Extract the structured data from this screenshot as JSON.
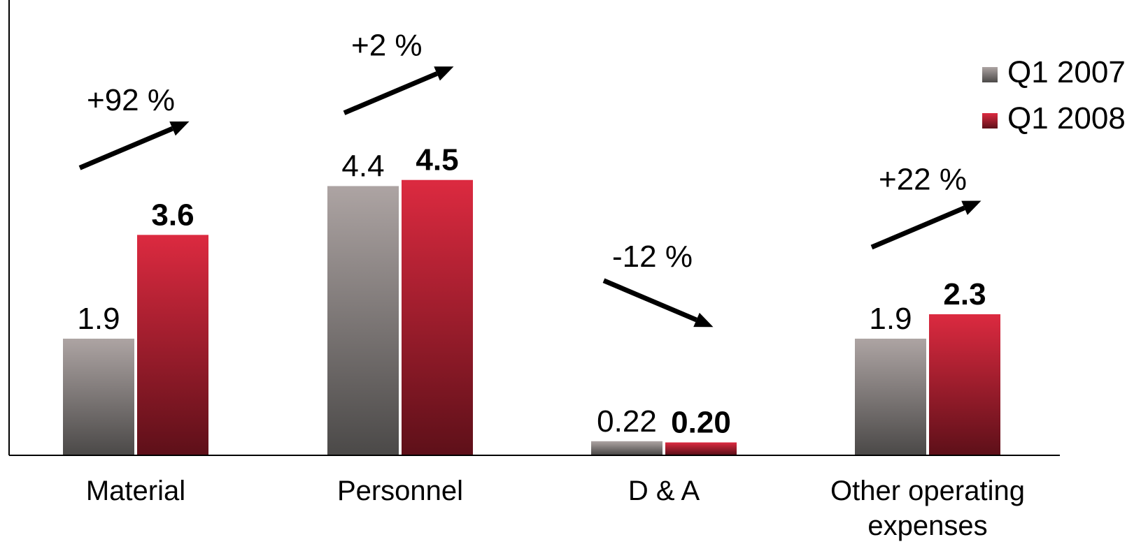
{
  "chart_data": {
    "type": "bar",
    "categories": [
      "Material",
      "Personnel",
      "D & A",
      "Other operating expenses"
    ],
    "category_lines": [
      [
        "Material"
      ],
      [
        "Personnel"
      ],
      [
        "D & A"
      ],
      [
        "Other operating",
        "expenses"
      ]
    ],
    "series": [
      {
        "name": "Q1 2007",
        "values": [
          1.9,
          4.4,
          0.22,
          1.9
        ],
        "labels": [
          "1.9",
          "4.4",
          "0.22",
          "1.9"
        ],
        "color_top": "#ada4a3",
        "color_bottom": "#4b4948",
        "label_bold": false
      },
      {
        "name": "Q1 2008",
        "values": [
          3.6,
          4.5,
          0.2,
          2.3
        ],
        "labels": [
          "3.6",
          "4.5",
          "0.20",
          "2.3"
        ],
        "color_top": "#dc2a40",
        "color_bottom": "#5e1019",
        "label_bold": true
      }
    ],
    "changes": [
      {
        "label": "+92 %",
        "direction": "up"
      },
      {
        "label": "+2 %",
        "direction": "up"
      },
      {
        "label": "-12 %",
        "direction": "down"
      },
      {
        "label": "+22 %",
        "direction": "up"
      }
    ],
    "ylim": [
      0,
      7.2
    ],
    "legend_position": "top-right",
    "grid": false
  }
}
